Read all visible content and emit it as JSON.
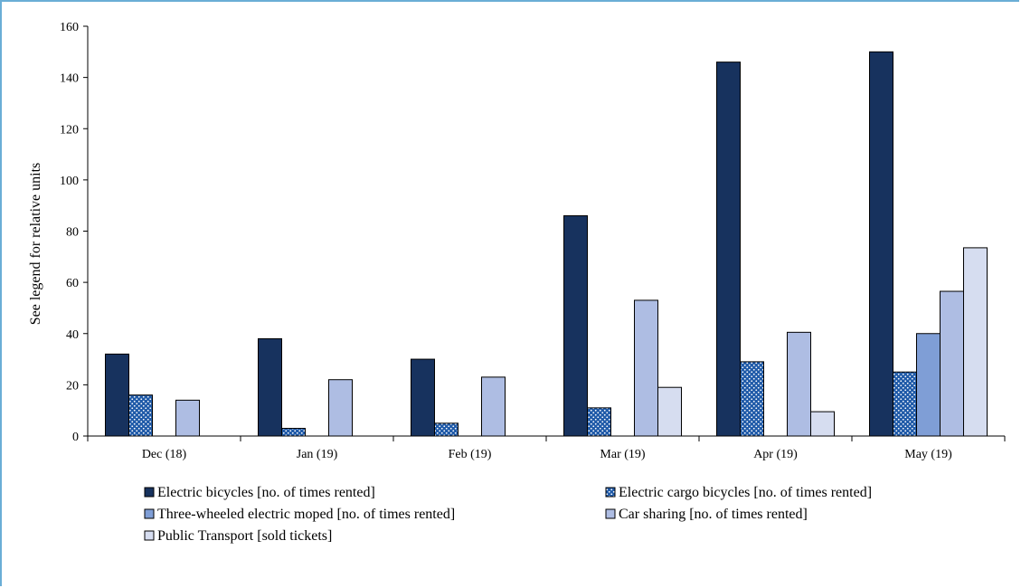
{
  "chart_data": {
    "type": "bar",
    "title": "",
    "xlabel": "",
    "ylabel": "See legend for relative units",
    "ylim": [
      0,
      160
    ],
    "yticks": [
      0,
      20,
      40,
      60,
      80,
      100,
      120,
      140,
      160
    ],
    "grid": false,
    "legend_position": "bottom",
    "categories": [
      "Dec (18)",
      "Jan (19)",
      "Feb (19)",
      "Mar (19)",
      "Apr (19)",
      "May (19)"
    ],
    "series": [
      {
        "name": "Electric bicycles [no. of times rented]",
        "color": "#17325e",
        "pattern": "solid",
        "values": [
          32,
          38,
          30,
          86,
          146,
          150
        ]
      },
      {
        "name": "Electric cargo bicycles [no. of times rented]",
        "color": "#1f5aa8",
        "pattern": "dots",
        "values": [
          16,
          3,
          5,
          11,
          29,
          25
        ]
      },
      {
        "name": "Three-wheeled electric moped [no. of times rented]",
        "color": "#7f9ed6",
        "pattern": "solid",
        "values": [
          0,
          0,
          0,
          0,
          0,
          40
        ]
      },
      {
        "name": "Car sharing [no. of times rented]",
        "color": "#aebde3",
        "pattern": "solid",
        "values": [
          14,
          22,
          23,
          53,
          40.5,
          56.5
        ]
      },
      {
        "name": "Public Transport [sold tickets]",
        "color": "#d6ddf0",
        "pattern": "solid",
        "values": [
          0,
          0,
          0,
          19,
          9.5,
          73.5
        ]
      }
    ]
  }
}
